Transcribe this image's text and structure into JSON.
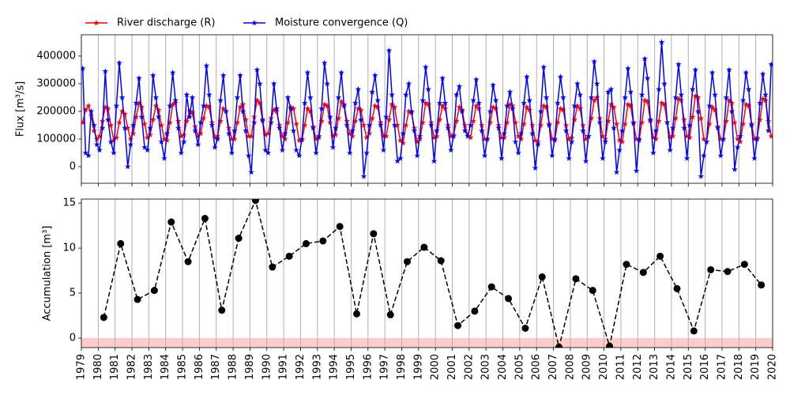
{
  "chart_data": [
    {
      "type": "line",
      "ylabel": "Flux [m³/s]",
      "xlim": [
        1979,
        2020
      ],
      "ylim": [
        -60000,
        477000
      ],
      "yticks": [
        0,
        100000,
        200000,
        300000,
        400000
      ],
      "legend": "above-left",
      "x": [
        1979.08,
        1979.25,
        1979.42,
        1979.58,
        1979.75,
        1979.92,
        1980.08,
        1980.25,
        1980.42,
        1980.58,
        1980.75,
        1980.92,
        1981.08,
        1981.25,
        1981.42,
        1981.58,
        1981.75,
        1981.92,
        1982.08,
        1982.25,
        1982.42,
        1982.58,
        1982.75,
        1982.92,
        1983.08,
        1983.25,
        1983.42,
        1983.58,
        1983.75,
        1983.92,
        1984.08,
        1984.25,
        1984.42,
        1984.58,
        1984.75,
        1984.92,
        1985.08,
        1985.25,
        1985.42,
        1985.58,
        1985.75,
        1985.92,
        1986.08,
        1986.25,
        1986.42,
        1986.58,
        1986.75,
        1986.92,
        1987.08,
        1987.25,
        1987.42,
        1987.58,
        1987.75,
        1987.92,
        1988.08,
        1988.25,
        1988.42,
        1988.58,
        1988.75,
        1988.92,
        1989.08,
        1989.25,
        1989.42,
        1989.58,
        1989.75,
        1989.92,
        1990.08,
        1990.25,
        1990.42,
        1990.58,
        1990.75,
        1990.92,
        1991.08,
        1991.25,
        1991.42,
        1991.58,
        1991.75,
        1991.92,
        1992.08,
        1992.25,
        1992.42,
        1992.58,
        1992.75,
        1992.92,
        1993.08,
        1993.25,
        1993.42,
        1993.58,
        1993.75,
        1993.92,
        1994.08,
        1994.25,
        1994.42,
        1994.58,
        1994.75,
        1994.92,
        1995.08,
        1995.25,
        1995.42,
        1995.58,
        1995.75,
        1995.92,
        1996.08,
        1996.25,
        1996.42,
        1996.58,
        1996.75,
        1996.92,
        1997.08,
        1997.25,
        1997.42,
        1997.58,
        1997.75,
        1997.92,
        1998.08,
        1998.25,
        1998.42,
        1998.58,
        1998.75,
        1998.92,
        1999.08,
        1999.25,
        1999.42,
        1999.58,
        1999.75,
        1999.92,
        2000.08,
        2000.25,
        2000.42,
        2000.58,
        2000.75,
        2000.92,
        2001.08,
        2001.25,
        2001.42,
        2001.58,
        2001.75,
        2001.92,
        2002.08,
        2002.25,
        2002.42,
        2002.58,
        2002.75,
        2002.92,
        2003.08,
        2003.25,
        2003.42,
        2003.58,
        2003.75,
        2003.92,
        2004.08,
        2004.25,
        2004.42,
        2004.58,
        2004.75,
        2004.92,
        2005.08,
        2005.25,
        2005.42,
        2005.58,
        2005.75,
        2005.92,
        2006.08,
        2006.25,
        2006.42,
        2006.58,
        2006.75,
        2006.92,
        2007.08,
        2007.25,
        2007.42,
        2007.58,
        2007.75,
        2007.92,
        2008.08,
        2008.25,
        2008.42,
        2008.58,
        2008.75,
        2008.92,
        2009.08,
        2009.25,
        2009.42,
        2009.58,
        2009.75,
        2009.92,
        2010.08,
        2010.25,
        2010.42,
        2010.58,
        2010.75,
        2010.92,
        2011.08,
        2011.25,
        2011.42,
        2011.58,
        2011.75,
        2011.92,
        2012.08,
        2012.25,
        2012.42,
        2012.58,
        2012.75,
        2012.92,
        2013.08,
        2013.25,
        2013.42,
        2013.58,
        2013.75,
        2013.92,
        2014.08,
        2014.25,
        2014.42,
        2014.58,
        2014.75,
        2014.92,
        2015.08,
        2015.25,
        2015.42,
        2015.58,
        2015.75,
        2015.92,
        2016.08,
        2016.25,
        2016.42,
        2016.58,
        2016.75,
        2016.92,
        2017.08,
        2017.25,
        2017.42,
        2017.58,
        2017.75,
        2017.92,
        2018.08,
        2018.25,
        2018.42,
        2018.58,
        2018.75,
        2018.92,
        2019.08,
        2019.25,
        2019.42,
        2019.58,
        2019.75,
        2019.92
      ],
      "series": [
        {
          "name": "River discharge (R)",
          "color": "#ff0000",
          "marker": "star",
          "values": [
            160000,
            205000,
            220000,
            185000,
            130000,
            100000,
            110000,
            165000,
            215000,
            210000,
            150000,
            95000,
            105000,
            160000,
            200000,
            190000,
            140000,
            100000,
            120000,
            180000,
            230000,
            215000,
            155000,
            105000,
            115000,
            170000,
            220000,
            205000,
            150000,
            100000,
            95000,
            160000,
            225000,
            230000,
            165000,
            110000,
            115000,
            165000,
            200000,
            195000,
            145000,
            110000,
            120000,
            175000,
            220000,
            215000,
            160000,
            105000,
            110000,
            165000,
            210000,
            200000,
            140000,
            100000,
            100000,
            160000,
            215000,
            225000,
            170000,
            110000,
            110000,
            180000,
            240000,
            230000,
            165000,
            115000,
            120000,
            175000,
            205000,
            200000,
            150000,
            110000,
            100000,
            160000,
            215000,
            210000,
            155000,
            95000,
            95000,
            150000,
            210000,
            200000,
            145000,
            100000,
            105000,
            165000,
            225000,
            220000,
            160000,
            110000,
            115000,
            175000,
            235000,
            225000,
            165000,
            120000,
            110000,
            165000,
            210000,
            205000,
            150000,
            105000,
            120000,
            175000,
            220000,
            215000,
            160000,
            110000,
            110000,
            170000,
            225000,
            215000,
            150000,
            95000,
            85000,
            150000,
            200000,
            195000,
            140000,
            90000,
            100000,
            160000,
            230000,
            225000,
            160000,
            105000,
            110000,
            170000,
            220000,
            210000,
            150000,
            110000,
            115000,
            165000,
            215000,
            205000,
            150000,
            110000,
            105000,
            165000,
            220000,
            210000,
            150000,
            100000,
            100000,
            160000,
            215000,
            210000,
            150000,
            105000,
            105000,
            160000,
            225000,
            220000,
            160000,
            110000,
            100000,
            155000,
            215000,
            205000,
            150000,
            95000,
            90000,
            150000,
            220000,
            215000,
            155000,
            100000,
            95000,
            160000,
            210000,
            205000,
            150000,
            100000,
            105000,
            170000,
            220000,
            210000,
            150000,
            100000,
            110000,
            175000,
            240000,
            250000,
            175000,
            110000,
            100000,
            165000,
            225000,
            215000,
            155000,
            95000,
            90000,
            155000,
            225000,
            220000,
            155000,
            100000,
            95000,
            160000,
            240000,
            235000,
            165000,
            105000,
            100000,
            165000,
            230000,
            225000,
            160000,
            105000,
            110000,
            175000,
            245000,
            240000,
            170000,
            110000,
            105000,
            180000,
            255000,
            250000,
            175000,
            100000,
            90000,
            155000,
            215000,
            205000,
            145000,
            100000,
            100000,
            165000,
            240000,
            230000,
            160000,
            100000,
            90000,
            155000,
            225000,
            220000,
            155000,
            100000,
            105000,
            170000,
            245000,
            240000,
            165000,
            110000
          ]
        },
        {
          "name": "Moisture convergence (Q)",
          "color": "#0000ff",
          "marker": "star",
          "values": [
            355000,
            50000,
            40000,
            200000,
            150000,
            80000,
            60000,
            140000,
            345000,
            170000,
            90000,
            50000,
            220000,
            375000,
            250000,
            140000,
            0,
            80000,
            150000,
            230000,
            320000,
            180000,
            70000,
            60000,
            140000,
            330000,
            250000,
            180000,
            90000,
            30000,
            120000,
            220000,
            340000,
            240000,
            140000,
            50000,
            90000,
            260000,
            180000,
            250000,
            130000,
            80000,
            160000,
            220000,
            365000,
            260000,
            150000,
            70000,
            100000,
            240000,
            330000,
            200000,
            120000,
            50000,
            130000,
            250000,
            330000,
            200000,
            130000,
            40000,
            -20000,
            160000,
            350000,
            300000,
            170000,
            60000,
            50000,
            160000,
            300000,
            210000,
            140000,
            60000,
            120000,
            250000,
            210000,
            130000,
            60000,
            40000,
            100000,
            230000,
            340000,
            250000,
            140000,
            50000,
            110000,
            210000,
            375000,
            300000,
            180000,
            70000,
            140000,
            250000,
            340000,
            220000,
            150000,
            50000,
            130000,
            230000,
            280000,
            170000,
            -35000,
            50000,
            150000,
            270000,
            330000,
            240000,
            150000,
            60000,
            180000,
            420000,
            260000,
            150000,
            20000,
            30000,
            120000,
            260000,
            300000,
            200000,
            130000,
            40000,
            110000,
            240000,
            360000,
            280000,
            150000,
            20000,
            130000,
            230000,
            320000,
            230000,
            140000,
            60000,
            110000,
            260000,
            290000,
            200000,
            130000,
            110000,
            150000,
            240000,
            315000,
            230000,
            130000,
            40000,
            100000,
            200000,
            295000,
            240000,
            140000,
            30000,
            120000,
            220000,
            270000,
            210000,
            90000,
            50000,
            120000,
            230000,
            325000,
            240000,
            120000,
            -5000,
            80000,
            200000,
            360000,
            250000,
            150000,
            40000,
            100000,
            230000,
            325000,
            250000,
            130000,
            30000,
            90000,
            220000,
            300000,
            260000,
            130000,
            20000,
            110000,
            250000,
            380000,
            300000,
            160000,
            30000,
            90000,
            270000,
            280000,
            140000,
            -20000,
            60000,
            130000,
            250000,
            355000,
            270000,
            160000,
            -15000,
            100000,
            260000,
            390000,
            320000,
            170000,
            50000,
            130000,
            280000,
            450000,
            300000,
            160000,
            60000,
            140000,
            250000,
            370000,
            260000,
            140000,
            30000,
            150000,
            280000,
            350000,
            200000,
            -35000,
            40000,
            90000,
            220000,
            340000,
            260000,
            140000,
            40000,
            100000,
            250000,
            350000,
            200000,
            -10000,
            70000,
            110000,
            240000,
            340000,
            280000,
            150000,
            30000,
            100000,
            230000,
            335000,
            260000,
            130000,
            370000
          ]
        }
      ]
    },
    {
      "type": "line",
      "ylabel": "Accumulation [m³]",
      "xlim": [
        1979,
        2020
      ],
      "xticks": [
        1979,
        1980,
        1981,
        1982,
        1983,
        1984,
        1985,
        1986,
        1987,
        1988,
        1989,
        1990,
        1991,
        1992,
        1993,
        1994,
        1995,
        1996,
        1997,
        1998,
        1999,
        2000,
        2001,
        2002,
        2003,
        2004,
        2005,
        2006,
        2007,
        2008,
        2009,
        2010,
        2011,
        2012,
        2013,
        2014,
        2015,
        2016,
        2017,
        2018,
        2019,
        2020
      ],
      "ylim": [
        -1.05,
        15.45
      ],
      "yticks": [
        0,
        5,
        10,
        15
      ],
      "grid": true,
      "shade_below": 0,
      "shade_color": "rgba(255,0,0,0.2)",
      "x": [
        1980.33,
        1981.33,
        1982.33,
        1983.33,
        1984.33,
        1985.33,
        1986.33,
        1987.33,
        1988.33,
        1989.33,
        1990.33,
        1991.33,
        1992.33,
        1993.33,
        1994.33,
        1995.33,
        1996.33,
        1997.33,
        1998.33,
        1999.33,
        2000.33,
        2001.33,
        2002.33,
        2003.33,
        2004.33,
        2005.33,
        2006.33,
        2007.33,
        2008.33,
        2009.33,
        2010.33,
        2011.33,
        2012.33,
        2013.33,
        2014.33,
        2015.33,
        2016.33,
        2017.33,
        2018.33,
        2019.33
      ],
      "series": [
        {
          "color": "#000000",
          "marker": "circle",
          "dashed": true,
          "values": [
            2.3,
            10.5,
            4.3,
            5.3,
            12.9,
            8.5,
            13.3,
            3.1,
            11.1,
            15.3,
            7.9,
            9.1,
            10.5,
            10.8,
            12.4,
            2.7,
            11.6,
            2.6,
            8.5,
            10.1,
            8.6,
            1.4,
            3.0,
            5.7,
            4.4,
            1.1,
            6.8,
            -1.0,
            6.6,
            5.3,
            -0.9,
            8.2,
            7.3,
            9.1,
            5.5,
            0.8,
            7.6,
            7.4,
            8.2,
            5.9
          ]
        }
      ]
    }
  ]
}
